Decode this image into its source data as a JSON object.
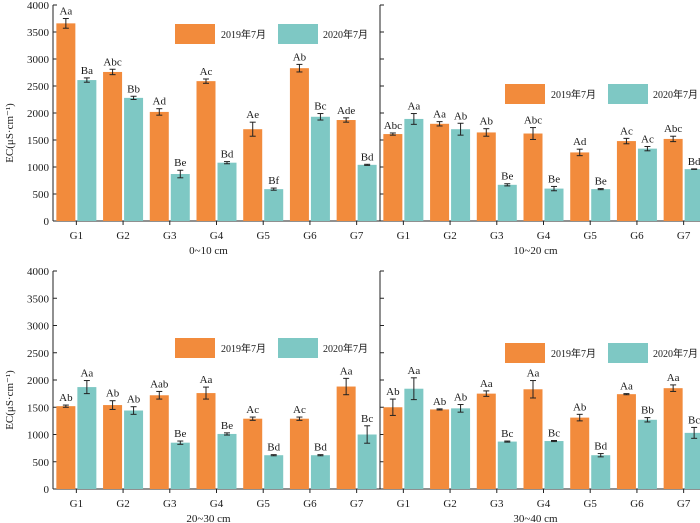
{
  "colors": {
    "y2019": "#f28b3c",
    "y2020": "#7ec8c4"
  },
  "chart_data": {
    "type": "bar",
    "ylabel": "EC(μS·cm⁻¹)",
    "ylim": [
      0,
      4000
    ],
    "yticks": [
      0,
      500,
      1000,
      1500,
      2000,
      2500,
      3000,
      3500,
      4000
    ],
    "categories": [
      "G1",
      "G2",
      "G3",
      "G4",
      "G5",
      "G6",
      "G7"
    ],
    "legend": [
      "2019年7月",
      "2020年7月"
    ],
    "panels": [
      {
        "depth": "0~10 cm",
        "series": [
          {
            "name": "2019年7月",
            "values": [
              3660,
              2760,
              2020,
              2590,
              1700,
              2830,
              1870
            ],
            "errors": [
              90,
              50,
              60,
              40,
              130,
              70,
              40
            ],
            "labels": [
              "Aa",
              "Abc",
              "Ad",
              "Ac",
              "Ae",
              "Ab",
              "Ade"
            ]
          },
          {
            "name": "2020年7月",
            "values": [
              2610,
              2280,
              870,
              1080,
              590,
              1930,
              1040
            ],
            "errors": [
              40,
              30,
              70,
              20,
              20,
              60,
              10
            ],
            "labels": [
              "Ba",
              "Bb",
              "Be",
              "Bd",
              "Bf",
              "Bc",
              "Bd"
            ]
          }
        ]
      },
      {
        "depth": "10~20 cm",
        "series": [
          {
            "name": "2019年7月",
            "values": [
              1610,
              1800,
              1640,
              1620,
              1270,
              1480,
              1520
            ],
            "errors": [
              20,
              40,
              70,
              110,
              60,
              50,
              50
            ],
            "labels": [
              "Abc",
              "Aa",
              "Ab",
              "Abc",
              "Ad",
              "Ac",
              "Abc"
            ]
          },
          {
            "name": "2020年7月",
            "values": [
              1890,
              1700,
              670,
              600,
              590,
              1340,
              960
            ],
            "errors": [
              100,
              110,
              20,
              40,
              10,
              40,
              5
            ],
            "labels": [
              "Aa",
              "Ab",
              "Be",
              "Be",
              "Be",
              "Ac",
              "Bd"
            ]
          }
        ]
      },
      {
        "depth": "20~30 cm",
        "series": [
          {
            "name": "2019年7月",
            "values": [
              1520,
              1540,
              1720,
              1760,
              1290,
              1290,
              1880
            ],
            "errors": [
              20,
              80,
              70,
              110,
              30,
              30,
              150
            ],
            "labels": [
              "Ab",
              "Ab",
              "Aab",
              "Aa",
              "Ac",
              "Ac",
              "Aa"
            ]
          },
          {
            "name": "2020年7月",
            "values": [
              1870,
              1440,
              850,
              1010,
              620,
              620,
              1000
            ],
            "errors": [
              120,
              70,
              30,
              20,
              10,
              10,
              160
            ],
            "labels": [
              "Aa",
              "Ab",
              "Be",
              "Be",
              "Bd",
              "Bd",
              "Bc"
            ]
          }
        ]
      },
      {
        "depth": "30~40 cm",
        "series": [
          {
            "name": "2019年7月",
            "values": [
              1500,
              1460,
              1750,
              1830,
              1310,
              1740,
              1850
            ],
            "errors": [
              150,
              10,
              50,
              160,
              60,
              10,
              60
            ],
            "labels": [
              "Ab",
              "Ab",
              "Aa",
              "Aa",
              "Ab",
              "Aa",
              "Aa"
            ]
          },
          {
            "name": "2020年7月",
            "values": [
              1840,
              1480,
              870,
              880,
              620,
              1270,
              1030
            ],
            "errors": [
              200,
              70,
              10,
              10,
              30,
              40,
              100
            ],
            "labels": [
              "Aa",
              "Ab",
              "Bc",
              "Bc",
              "Bd",
              "Bb",
              "Bc"
            ]
          }
        ]
      }
    ]
  }
}
